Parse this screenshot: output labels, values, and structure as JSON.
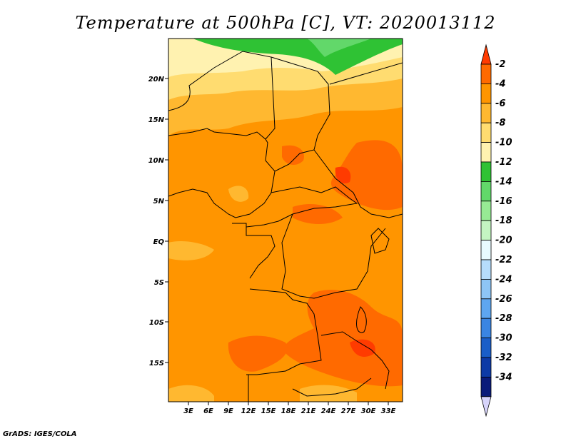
{
  "title": "Temperature at 500hPa [C], VT: 2020013112",
  "credit": "GrADS: IGES/COLA",
  "lat_labels": [
    "20N",
    "15N",
    "10N",
    "5N",
    "EQ",
    "5S",
    "10S",
    "15S"
  ],
  "lon_labels": [
    "3E",
    "6E",
    "9E",
    "12E",
    "15E",
    "18E",
    "21E",
    "24E",
    "27E",
    "30E",
    "33E"
  ],
  "colorbar": {
    "labels": [
      "-2",
      "-4",
      "-6",
      "-8",
      "-10",
      "-12",
      "-14",
      "-16",
      "-18",
      "-20",
      "-22",
      "-24",
      "-26",
      "-28",
      "-30",
      "-32",
      "-34"
    ],
    "colors": [
      "#ff3b00",
      "#ff6a00",
      "#ff9500",
      "#ffb830",
      "#ffdc70",
      "#fff2b0",
      "#2fc234",
      "#62d86a",
      "#97ea94",
      "#c4f5c2",
      "#e8fafe",
      "#b6dcfb",
      "#8ec5f5",
      "#5ea6f0",
      "#3a85e2",
      "#1a5ec8",
      "#0d3aa6",
      "#0a1b7a",
      "#d7d4fb"
    ]
  }
}
